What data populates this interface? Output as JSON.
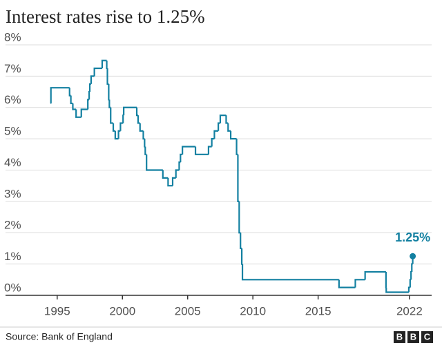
{
  "chart_data": {
    "type": "line",
    "drawstyle": "steps-post",
    "title": "Interest rates rise to 1.25%",
    "source": "Source: Bank of England",
    "logo": [
      "B",
      "B",
      "C"
    ],
    "annotation": "1.25%",
    "color": "#1380a1",
    "grid": true,
    "xlim": [
      1993,
      2023.7
    ],
    "ylim": [
      0,
      8
    ],
    "xticks": [
      1995,
      2000,
      2005,
      2010,
      2015,
      2022
    ],
    "yticks": [
      {
        "value": 0,
        "label": "0%"
      },
      {
        "value": 1,
        "label": "1%"
      },
      {
        "value": 2,
        "label": "2%"
      },
      {
        "value": 3,
        "label": "3%"
      },
      {
        "value": 4,
        "label": "4%"
      },
      {
        "value": 5,
        "label": "5%"
      },
      {
        "value": 6,
        "label": "6%"
      },
      {
        "value": 7,
        "label": "7%"
      },
      {
        "value": 8,
        "label": "8%"
      }
    ],
    "x": [
      1994.5,
      1994.52,
      1995.95,
      1996.05,
      1996.2,
      1996.45,
      1996.85,
      1997.35,
      1997.45,
      1997.5,
      1997.6,
      1997.85,
      1998.45,
      1998.8,
      1998.85,
      1998.95,
      1999.0,
      1999.1,
      1999.3,
      1999.45,
      1999.7,
      1999.85,
      2000.05,
      2000.1,
      2001.1,
      2001.2,
      2001.35,
      2001.6,
      2001.7,
      2001.75,
      2001.85,
      2003.1,
      2003.5,
      2003.85,
      2004.1,
      2004.35,
      2004.45,
      2004.6,
      2005.6,
      2006.6,
      2006.85,
      2007.05,
      2007.35,
      2007.5,
      2007.95,
      2008.1,
      2008.3,
      2008.75,
      2008.85,
      2008.95,
      2009.05,
      2009.15,
      2009.2,
      2016.6,
      2017.85,
      2018.6,
      2020.2,
      2020.22,
      2021.95,
      2022.05,
      2022.12,
      2022.18,
      2022.25
    ],
    "values": [
      6.13,
      6.63,
      6.38,
      6.13,
      5.94,
      5.69,
      5.94,
      6.25,
      6.5,
      6.75,
      7.0,
      7.25,
      7.5,
      7.25,
      6.75,
      6.25,
      6.0,
      5.5,
      5.25,
      5.0,
      5.25,
      5.5,
      5.75,
      6.0,
      5.75,
      5.5,
      5.25,
      5.0,
      4.75,
      4.5,
      4.0,
      3.75,
      3.5,
      3.75,
      4.0,
      4.25,
      4.5,
      4.75,
      4.5,
      4.75,
      5.0,
      5.25,
      5.5,
      5.75,
      5.5,
      5.25,
      5.0,
      4.5,
      3.0,
      2.0,
      1.5,
      1.0,
      0.5,
      0.25,
      0.5,
      0.75,
      0.25,
      0.1,
      0.25,
      0.5,
      0.75,
      1.0,
      1.25
    ]
  }
}
